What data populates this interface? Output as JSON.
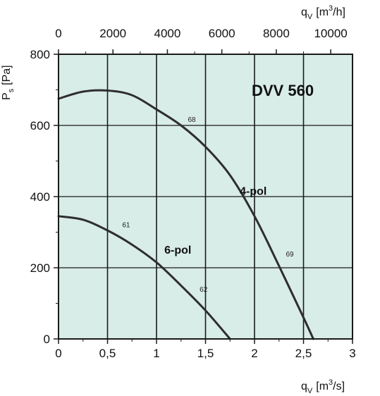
{
  "colors": {
    "plot_background": "#d8ece8",
    "grid": "#1a1a1a",
    "curve": "#2e2e2e",
    "frame": "#1a1a1a"
  },
  "chart_data": {
    "type": "line",
    "title": "DVV 560",
    "xlabel": {
      "main": "q",
      "sub": "V",
      "unit_open": "[m",
      "unit_sup": "3",
      "unit_close": "/s]"
    },
    "x2label": {
      "main": "q",
      "sub": "V",
      "unit_open": "[m",
      "unit_sup": "3",
      "unit_close": "/h]"
    },
    "ylabel": {
      "main": "P",
      "sub": "s",
      "unit": "[Pa]"
    },
    "xlim": [
      0,
      3
    ],
    "ylim": [
      0,
      800
    ],
    "x2lim": [
      0,
      10800
    ],
    "x_ticks": [
      0,
      0.5,
      1,
      1.5,
      2,
      2.5,
      3
    ],
    "x_tick_labels": [
      "0",
      "0,5",
      "1",
      "1,5",
      "2",
      "2,5",
      "3"
    ],
    "x2_ticks": [
      0,
      2000,
      4000,
      6000,
      8000,
      10000
    ],
    "x2_tick_labels": [
      "0",
      "2000",
      "4000",
      "6000",
      "8000",
      "10000"
    ],
    "y_ticks": [
      0,
      200,
      400,
      600,
      800
    ],
    "y_tick_labels": [
      "0",
      "200",
      "400",
      "600",
      "800"
    ],
    "grid": true,
    "series": [
      {
        "name": "4-pol",
        "x": [
          0,
          0.25,
          0.5,
          0.75,
          1,
          1.25,
          1.5,
          1.75,
          2,
          2.25,
          2.5,
          2.6
        ],
        "values": [
          675,
          695,
          698,
          685,
          645,
          600,
          540,
          460,
          345,
          205,
          60,
          0
        ],
        "efficiency_points": [
          {
            "x": 1.32,
            "y": 610,
            "label": "68"
          },
          {
            "x": 2.32,
            "y": 232,
            "label": "69"
          }
        ]
      },
      {
        "name": "6-pol",
        "x": [
          0,
          0.25,
          0.5,
          0.75,
          1,
          1.25,
          1.5,
          1.75
        ],
        "values": [
          345,
          335,
          305,
          265,
          215,
          150,
          80,
          0
        ],
        "efficiency_points": [
          {
            "x": 0.65,
            "y": 314,
            "label": "61"
          },
          {
            "x": 1.44,
            "y": 133,
            "label": "62"
          }
        ]
      }
    ]
  }
}
